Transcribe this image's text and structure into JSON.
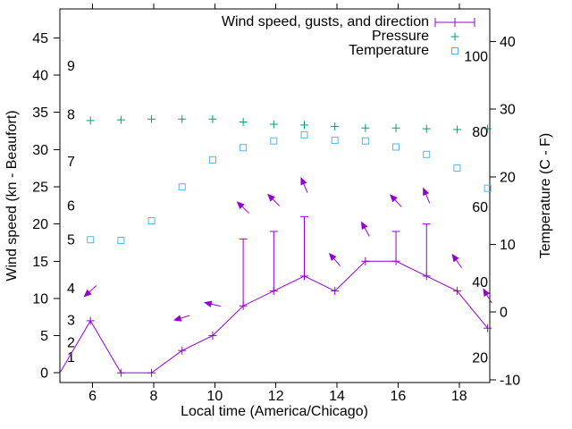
{
  "chart_data": {
    "type": "line",
    "title": "",
    "xlabel": "Local time (America/Chicago)",
    "ylabel_left": "Wind speed (kn - Beaufort)",
    "ylabel_right": "Temperature (C - F)",
    "xlim": [
      4.93,
      19.0
    ],
    "ylim_left": [
      -1.3,
      48.9
    ],
    "ylim_right": [
      -10.4,
      44.8
    ],
    "x_ticks": [
      6,
      8,
      10,
      12,
      14,
      16,
      18
    ],
    "y_ticks_left": [
      0,
      5,
      10,
      15,
      20,
      25,
      30,
      35,
      40,
      45
    ],
    "y_ticks_right": [
      -10,
      0,
      10,
      20,
      30,
      40
    ],
    "grid": false,
    "legend_position": "top-right-inside",
    "beaufort_scale_labels": [
      {
        "label": "1",
        "y": 2.1
      },
      {
        "label": "2",
        "y": 4.1
      },
      {
        "label": "3",
        "y": 7.1
      },
      {
        "label": "4",
        "y": 11.4
      },
      {
        "label": "5",
        "y": 17.9
      },
      {
        "label": "6",
        "y": 22.5
      },
      {
        "label": "7",
        "y": 28.4
      },
      {
        "label": "8",
        "y": 34.7
      },
      {
        "label": "9",
        "y": 41.3
      }
    ],
    "fahrenheit_labels": [
      {
        "label": "20",
        "c": -6.67
      },
      {
        "label": "40",
        "c": 4.44
      },
      {
        "label": "60",
        "c": 15.56
      },
      {
        "label": "80",
        "c": 26.67
      },
      {
        "label": "100",
        "c": 37.78
      }
    ],
    "series": {
      "wind": {
        "name": "Wind speed, gusts, and direction",
        "color": "#9400d3",
        "times": [
          4.93,
          5.93,
          6.93,
          7.93,
          8.93,
          9.93,
          10.93,
          11.93,
          12.93,
          13.93,
          14.93,
          15.93,
          16.93,
          17.93,
          18.93
        ],
        "speeds_kn": [
          0,
          7,
          0,
          0,
          3,
          5,
          9,
          11,
          13,
          11,
          15,
          15,
          13,
          11,
          6
        ],
        "gusts_kn": [
          null,
          null,
          null,
          null,
          null,
          null,
          18,
          19,
          21,
          null,
          null,
          19,
          20,
          null,
          null
        ],
        "direction_arrows": [
          {
            "t": 5.93,
            "y": 11.0,
            "angle_deg": 222
          },
          {
            "t": 8.93,
            "y": 7.4,
            "angle_deg": 197
          },
          {
            "t": 9.93,
            "y": 9.2,
            "angle_deg": 167
          },
          {
            "t": 10.93,
            "y": 22.2,
            "angle_deg": 136
          },
          {
            "t": 11.93,
            "y": 23.2,
            "angle_deg": 135
          },
          {
            "t": 12.93,
            "y": 25.2,
            "angle_deg": 113
          },
          {
            "t": 13.93,
            "y": 15.2,
            "angle_deg": 131
          },
          {
            "t": 14.93,
            "y": 19.3,
            "angle_deg": 119
          },
          {
            "t": 15.93,
            "y": 23.1,
            "angle_deg": 133
          },
          {
            "t": 16.93,
            "y": 23.8,
            "angle_deg": 113
          },
          {
            "t": 17.93,
            "y": 15.0,
            "angle_deg": 125
          },
          {
            "t": 18.93,
            "y": 10.3,
            "angle_deg": 121
          }
        ]
      },
      "pressure": {
        "name": "Pressure",
        "color": "#009e73",
        "times": [
          5.93,
          6.93,
          7.93,
          8.93,
          9.93,
          10.93,
          11.93,
          12.93,
          13.93,
          14.93,
          15.93,
          16.93,
          17.93,
          18.93
        ],
        "values_left_axis": [
          33.9,
          34.0,
          34.1,
          34.1,
          34.1,
          33.7,
          33.4,
          33.3,
          33.1,
          32.9,
          32.9,
          32.8,
          32.7,
          32.8
        ]
      },
      "temperature": {
        "name": "Temperature",
        "color": "#56b4e9",
        "times": [
          5.93,
          6.93,
          7.93,
          8.93,
          9.93,
          10.93,
          11.93,
          12.93,
          13.93,
          14.93,
          15.93,
          16.93,
          17.93,
          18.93
        ],
        "values_c": [
          10.7,
          10.6,
          13.5,
          18.5,
          22.5,
          24.3,
          25.3,
          26.2,
          25.4,
          25.3,
          24.4,
          23.3,
          21.3,
          18.3
        ]
      }
    },
    "legend_entries": [
      {
        "label": "Wind speed, gusts, and direction",
        "marker": "errorbar",
        "series": "wind"
      },
      {
        "label": "Pressure",
        "marker": "plus",
        "series": "pressure"
      },
      {
        "label": "Temperature",
        "marker": "open-square",
        "series": "temperature"
      }
    ]
  }
}
